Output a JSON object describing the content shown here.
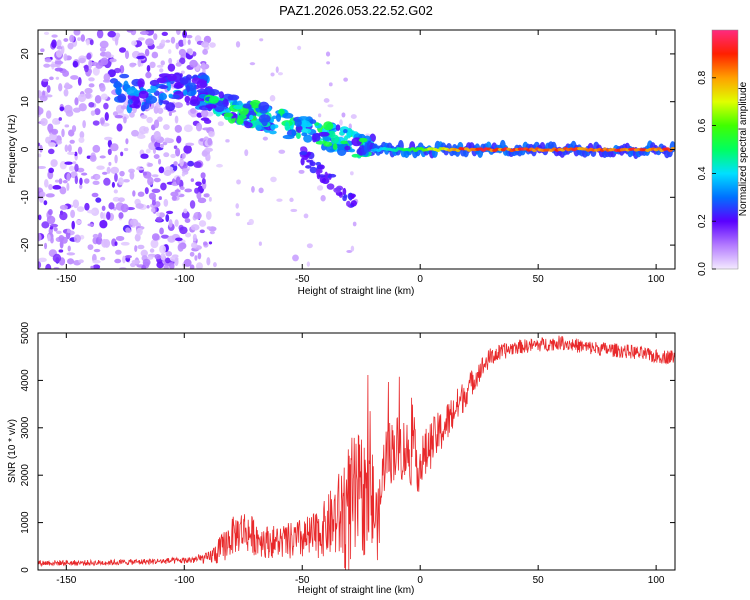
{
  "title": "PAZ1.2026.053.22.52.G02",
  "chart_data": [
    {
      "type": "heatmap",
      "xlabel": "Height of straight line (km)",
      "ylabel": "Frequency (Hz)",
      "xlim": [
        -162,
        108
      ],
      "ylim": [
        -25,
        25
      ],
      "xticks": [
        -150,
        -100,
        -50,
        0,
        50,
        100
      ],
      "yticks": [
        -20,
        -10,
        0,
        10,
        20
      ],
      "colorbar": {
        "label": "Normalized spectral amplitude",
        "range": [
          0,
          1
        ],
        "ticks": [
          0.0,
          0.2,
          0.4,
          0.6,
          0.8
        ]
      },
      "features": [
        {
          "name": "scattered-noise",
          "x_range": [
            -162,
            -88
          ],
          "freq_range": [
            -25,
            25
          ],
          "amplitude": 0.15
        },
        {
          "name": "upper-branch",
          "x_range": [
            -130,
            -90
          ],
          "freq_center": 12,
          "amplitude": 0.3
        },
        {
          "name": "descending-trace",
          "x_range": [
            -90,
            -20
          ],
          "freq_from": 10,
          "freq_to": 0,
          "amplitude": 0.35
        },
        {
          "name": "lower-branch",
          "x_range": [
            -50,
            -28
          ],
          "freq_from": -1,
          "freq_to": -11,
          "amplitude": 0.15
        },
        {
          "name": "carrier-line",
          "x_range": [
            -20,
            108
          ],
          "freq_center": 0,
          "amplitude": 0.95
        }
      ]
    },
    {
      "type": "line",
      "xlabel": "Height of straight line (km)",
      "ylabel": "SNR (10 * v/v)",
      "xlim": [
        -162,
        108
      ],
      "ylim": [
        0,
        5000
      ],
      "xticks": [
        -150,
        -100,
        -50,
        0,
        50,
        100
      ],
      "yticks": [
        0,
        1000,
        2000,
        3000,
        4000,
        5000
      ],
      "series": [
        {
          "name": "SNR",
          "color": "#e8282a",
          "x": [
            -162,
            -140,
            -120,
            -100,
            -90,
            -85,
            -80,
            -75,
            -70,
            -65,
            -60,
            -55,
            -50,
            -45,
            -40,
            -35,
            -30,
            -25,
            -20,
            -18,
            -15,
            -10,
            -5,
            0,
            5,
            10,
            15,
            20,
            25,
            30,
            40,
            50,
            60,
            70,
            80,
            90,
            100,
            108
          ],
          "values": [
            150,
            150,
            170,
            200,
            250,
            400,
            700,
            850,
            700,
            600,
            600,
            600,
            650,
            700,
            900,
            1100,
            1300,
            1600,
            1400,
            900,
            2400,
            2600,
            2500,
            2200,
            2700,
            3000,
            3400,
            3800,
            4200,
            4500,
            4700,
            4750,
            4800,
            4700,
            4650,
            4600,
            4500,
            4500
          ],
          "spread": [
            60,
            60,
            60,
            70,
            120,
            300,
            400,
            450,
            400,
            350,
            350,
            400,
            450,
            500,
            600,
            900,
            1500,
            1300,
            1200,
            700,
            700,
            700,
            700,
            600,
            500,
            450,
            400,
            300,
            250,
            200,
            150,
            150,
            150,
            150,
            150,
            150,
            150,
            150
          ]
        }
      ]
    }
  ]
}
